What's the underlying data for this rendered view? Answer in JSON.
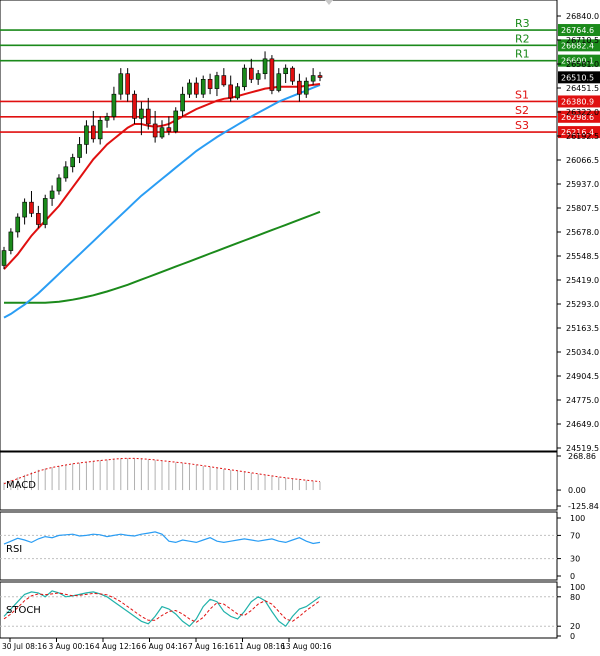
{
  "chart_data": {
    "type": "candlestick",
    "timeframe_labels": [
      "30 Jul 08:16",
      "3 Aug 00:16",
      "4 Aug 12:16",
      "6 Aug 04:16",
      "7 Aug 16:16",
      "11 Aug 08:16",
      "13 Aug 00:16"
    ],
    "price_ticks": [
      "26840.0",
      "26710.5",
      "26581.0",
      "26451.5",
      "26322.0",
      "26192.5",
      "26066.5",
      "25937.0",
      "25807.5",
      "25678.0",
      "25548.5",
      "25419.0",
      "25293.0",
      "25163.5",
      "25034.0",
      "24904.5",
      "24775.0",
      "24649.0",
      "24519.5"
    ],
    "ylim": [
      24519.5,
      26840.0
    ],
    "current_price": "26510.5",
    "levels": [
      {
        "name": "R3",
        "value": 26764.6,
        "label": "26764.6",
        "color": "#1b8a1b"
      },
      {
        "name": "R2",
        "value": 26682.4,
        "label": "26682.4",
        "color": "#1b8a1b"
      },
      {
        "name": "R1",
        "value": 26600.1,
        "label": "26600.1",
        "color": "#1b8a1b"
      },
      {
        "name": "S1",
        "value": 26380.9,
        "label": "26380.9",
        "color": "#e01010"
      },
      {
        "name": "S2",
        "value": 26298.6,
        "label": "26298.6",
        "color": "#e01010"
      },
      {
        "name": "S3",
        "value": 26216.4,
        "label": "26216.4",
        "color": "#e01010"
      }
    ],
    "candles": [
      [
        25500,
        25600,
        25480,
        25580
      ],
      [
        25580,
        25700,
        25560,
        25680
      ],
      [
        25680,
        25780,
        25650,
        25760
      ],
      [
        25760,
        25860,
        25720,
        25840
      ],
      [
        25840,
        25900,
        25760,
        25780
      ],
      [
        25780,
        25820,
        25700,
        25720
      ],
      [
        25720,
        25880,
        25700,
        25860
      ],
      [
        25860,
        25930,
        25820,
        25900
      ],
      [
        25900,
        25990,
        25880,
        25970
      ],
      [
        25970,
        26060,
        25950,
        26030
      ],
      [
        26030,
        26100,
        26000,
        26080
      ],
      [
        26080,
        26190,
        26050,
        26150
      ],
      [
        26150,
        26280,
        26100,
        26250
      ],
      [
        26250,
        26330,
        26160,
        26180
      ],
      [
        26180,
        26300,
        26150,
        26280
      ],
      [
        26280,
        26320,
        26240,
        26300
      ],
      [
        26300,
        26460,
        26280,
        26420
      ],
      [
        26420,
        26560,
        26390,
        26530
      ],
      [
        26530,
        26560,
        26380,
        26420
      ],
      [
        26420,
        26440,
        26260,
        26290
      ],
      [
        26290,
        26380,
        26200,
        26340
      ],
      [
        26340,
        26400,
        26230,
        26260
      ],
      [
        26260,
        26330,
        26160,
        26190
      ],
      [
        26190,
        26280,
        26180,
        26240
      ],
      [
        26240,
        26300,
        26200,
        26220
      ],
      [
        26220,
        26350,
        26210,
        26330
      ],
      [
        26330,
        26460,
        26300,
        26420
      ],
      [
        26420,
        26500,
        26400,
        26480
      ],
      [
        26480,
        26510,
        26400,
        26420
      ],
      [
        26420,
        26520,
        26400,
        26500
      ],
      [
        26500,
        26530,
        26420,
        26450
      ],
      [
        26450,
        26540,
        26410,
        26520
      ],
      [
        26520,
        26560,
        26460,
        26470
      ],
      [
        26470,
        26520,
        26380,
        26400
      ],
      [
        26400,
        26480,
        26390,
        26460
      ],
      [
        26460,
        26580,
        26440,
        26560
      ],
      [
        26560,
        26610,
        26480,
        26500
      ],
      [
        26500,
        26550,
        26470,
        26530
      ],
      [
        26530,
        26650,
        26500,
        26610
      ],
      [
        26610,
        26630,
        26420,
        26440
      ],
      [
        26440,
        26560,
        26430,
        26530
      ],
      [
        26530,
        26580,
        26480,
        26560
      ],
      [
        26560,
        26570,
        26470,
        26490
      ],
      [
        26490,
        26530,
        26380,
        26420
      ],
      [
        26420,
        26510,
        26400,
        26490
      ],
      [
        26490,
        26560,
        26470,
        26520
      ],
      [
        26520,
        26540,
        26490,
        26510
      ]
    ],
    "ma_red": [
      25480,
      25520,
      25560,
      25610,
      25660,
      25700,
      25740,
      25780,
      25820,
      25870,
      25920,
      25970,
      26020,
      26070,
      26110,
      26150,
      26180,
      26210,
      26240,
      26260,
      26260,
      26250,
      26245,
      26250,
      26260,
      26280,
      26300,
      26320,
      26340,
      26355,
      26370,
      26385,
      26395,
      26400,
      26410,
      26420,
      26430,
      26440,
      26450,
      26455,
      26460,
      26460,
      26460,
      26460,
      26465,
      26470,
      26475
    ],
    "ma_blue": [
      25220,
      25240,
      25265,
      25290,
      25320,
      25350,
      25385,
      25420,
      25455,
      25490,
      25525,
      25560,
      25595,
      25630,
      25665,
      25700,
      25735,
      25770,
      25805,
      25840,
      25875,
      25905,
      25935,
      25965,
      25995,
      26025,
      26055,
      26085,
      26115,
      26140,
      26165,
      26190,
      26212,
      26234,
      26256,
      26278,
      26300,
      26320,
      26340,
      26360,
      26380,
      26395,
      26410,
      26425,
      26440,
      26455,
      26470
    ],
    "ma_green": [
      25300,
      25300,
      25300,
      25300,
      25300,
      25300,
      25300,
      25302,
      25305,
      25310,
      25316,
      25323,
      25331,
      25340,
      25350,
      25360,
      25372,
      25384,
      25396,
      25410,
      25424,
      25438,
      25452,
      25466,
      25480,
      25494,
      25508,
      25522,
      25536,
      25550,
      25564,
      25578,
      25592,
      25606,
      25620,
      25634,
      25648,
      25662,
      25676,
      25690,
      25704,
      25718,
      25732,
      25746,
      25760,
      25774,
      25788
    ],
    "macd": {
      "title": "MACD",
      "ticks": [
        "268.86",
        "0.00",
        "-125.84"
      ],
      "ylim": [
        -125.84,
        268.86
      ],
      "histogram": [
        60,
        80,
        100,
        120,
        140,
        160,
        170,
        180,
        190,
        200,
        210,
        215,
        222,
        228,
        235,
        240,
        246,
        250,
        252,
        250,
        246,
        242,
        236,
        230,
        224,
        218,
        212,
        205,
        198,
        190,
        182,
        174,
        166,
        158,
        150,
        142,
        134,
        126,
        118,
        110,
        102,
        95,
        88,
        82,
        76,
        70,
        65
      ],
      "signal": [
        50,
        70,
        90,
        110,
        130,
        150,
        165,
        178,
        188,
        198,
        207,
        214,
        221,
        227,
        233,
        238,
        244,
        248,
        251,
        250,
        247,
        243,
        238,
        232,
        226,
        220,
        214,
        207,
        200,
        192,
        184,
        176,
        168,
        160,
        152,
        144,
        136,
        128,
        120,
        112,
        104,
        97,
        90,
        84,
        78,
        72,
        67
      ]
    },
    "rsi": {
      "title": "RSI",
      "ticks": [
        "100",
        "70",
        "30",
        "0"
      ],
      "ylim": [
        0,
        100
      ],
      "values": [
        55,
        60,
        65,
        62,
        58,
        64,
        68,
        66,
        70,
        71,
        72,
        69,
        70,
        72,
        71,
        68,
        70,
        72,
        70,
        69,
        72,
        74,
        76,
        72,
        60,
        58,
        62,
        60,
        58,
        62,
        66,
        60,
        58,
        60,
        62,
        64,
        62,
        60,
        62,
        64,
        60,
        58,
        62,
        66,
        60,
        56,
        58
      ]
    },
    "stoch": {
      "title": "STOCH",
      "ticks": [
        "100",
        "80",
        "20",
        "0"
      ],
      "ylim": [
        0,
        100
      ],
      "k": [
        40,
        55,
        70,
        85,
        90,
        88,
        80,
        92,
        88,
        80,
        82,
        85,
        88,
        90,
        86,
        80,
        70,
        60,
        50,
        40,
        30,
        25,
        40,
        60,
        55,
        45,
        30,
        20,
        35,
        60,
        75,
        70,
        50,
        40,
        35,
        50,
        70,
        80,
        72,
        50,
        30,
        20,
        40,
        55,
        60,
        70,
        80
      ],
      "d": [
        35,
        45,
        58,
        72,
        82,
        86,
        84,
        86,
        88,
        85,
        82,
        83,
        85,
        87,
        86,
        84,
        78,
        70,
        60,
        50,
        40,
        32,
        32,
        42,
        50,
        52,
        45,
        35,
        28,
        38,
        55,
        68,
        65,
        55,
        45,
        42,
        52,
        65,
        72,
        65,
        50,
        35,
        30,
        40,
        52,
        62,
        72
      ]
    }
  }
}
